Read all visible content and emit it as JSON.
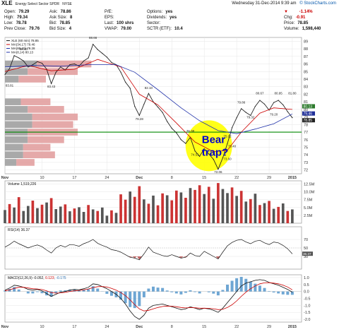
{
  "header": {
    "symbol": "XLE",
    "name": "Energy Select Sector SPDR",
    "exchange": "NYSE",
    "date": "Wednesday  31-Dec-2014  9:39 am",
    "site": "© StockCharts.com",
    "quote": [
      {
        "label": "Open:",
        "value": "79.29"
      },
      {
        "label": "High:",
        "value": "79.34"
      },
      {
        "label": "Low:",
        "value": "78.78"
      },
      {
        "label": "Prev Close:",
        "value": "79.76"
      }
    ],
    "quote2": [
      {
        "label": "Ask:",
        "value": "78.86"
      },
      {
        "label": "Ask Size:",
        "value": "8"
      },
      {
        "label": "Bid:",
        "value": "78.85"
      },
      {
        "label": "Bid Size:",
        "value": "4"
      }
    ],
    "quote3": [
      {
        "label": "P/E:",
        "value": ""
      },
      {
        "label": "EPS:",
        "value": ""
      },
      {
        "label": "Last:",
        "value": "100 shrs"
      },
      {
        "label": "VWAP:",
        "value": "79.00"
      }
    ],
    "quote4": [
      {
        "label": "Options:",
        "value": "yes"
      },
      {
        "label": "Dividends:",
        "value": "yes"
      },
      {
        "label": "Sector:",
        "value": ""
      },
      {
        "label": "SCTR (ETF):",
        "value": "10.4"
      }
    ],
    "change_pct": "-1.14%",
    "change": [
      {
        "label": "Chg:",
        "value": "-0.91"
      },
      {
        "label": "Price:",
        "value": "78.85"
      },
      {
        "label": "Volume:",
        "value": "1,598,440"
      }
    ]
  },
  "price_panel": {
    "legend": [
      "XLE (60 min) 78.85",
      "MA(34,17) 79.46",
      "MA(80,20) 79.28",
      "MA(8,14) 80.13"
    ],
    "annotation": "Bear\ntrap?",
    "annotation_line1": "Bear",
    "annotation_line2": "trap?",
    "price_badges": [
      "80.13",
      "79.46",
      "78.85"
    ],
    "support_level": 77,
    "highlight_color": "#ffff00",
    "annotation_color": "#0000cc"
  },
  "colors": {
    "price": "#222222",
    "ma_fast": "#cc0000",
    "ma_slow": "#2233aa",
    "support": "#008800",
    "up_volume": "#555555",
    "down_volume": "#cc3333",
    "macd_hist": "#4a90c8",
    "vbp_down": "#e09a9a",
    "vbp_up": "#9a9a9a"
  },
  "chart_data": [
    {
      "type": "line",
      "panel": "price",
      "ylim": [
        71.5,
        89.5
      ],
      "yticks": [
        72,
        73,
        74,
        75,
        76,
        77,
        78,
        79,
        80,
        81,
        82,
        83,
        84,
        85,
        86,
        87,
        88,
        89
      ],
      "x_labels": [
        "Nov",
        "10",
        "17",
        "24",
        "Dec",
        "8",
        "15",
        "22",
        "29",
        "2015"
      ],
      "x_label_pos": [
        0,
        8,
        15,
        22,
        29,
        36,
        43,
        50,
        57,
        62
      ],
      "x_range": [
        0,
        64
      ],
      "series": [
        {
          "name": "XLE (60 min)",
          "points": [
            [
              0,
              84.6
            ],
            [
              1,
              85.4
            ],
            [
              2,
              87.1
            ],
            [
              3,
              86.8
            ],
            [
              4,
              86.4
            ],
            [
              5,
              85.6
            ],
            [
              6,
              85.9
            ],
            [
              7,
              86.3
            ],
            [
              8,
              86.1
            ],
            [
              9,
              85.3
            ],
            [
              10,
              83.4
            ],
            [
              11,
              84.9
            ],
            [
              12,
              85.6
            ],
            [
              13,
              85.2
            ],
            [
              14,
              85.9
            ],
            [
              15,
              86.0
            ],
            [
              16,
              85.7
            ],
            [
              17,
              86.4
            ],
            [
              18,
              86.8
            ],
            [
              19,
              88.6
            ],
            [
              20,
              87.9
            ],
            [
              21,
              87.4
            ],
            [
              22,
              86.9
            ],
            [
              23,
              86.2
            ],
            [
              24,
              85.9
            ],
            [
              25,
              84.9
            ],
            [
              26,
              83.6
            ],
            [
              27,
              82.8
            ],
            [
              28,
              80.4
            ],
            [
              29,
              79.2
            ],
            [
              30,
              80.7
            ],
            [
              31,
              82.1
            ],
            [
              32,
              81.0
            ],
            [
              33,
              80.3
            ],
            [
              34,
              79.6
            ],
            [
              35,
              78.4
            ],
            [
              36,
              77.5
            ],
            [
              37,
              76.9
            ],
            [
              38,
              76.0
            ],
            [
              39,
              75.5
            ],
            [
              40,
              76.3
            ],
            [
              41,
              74.5
            ],
            [
              42,
              73.8
            ],
            [
              43,
              74.8
            ],
            [
              44,
              74.1
            ],
            [
              45,
              73.4
            ],
            [
              46,
              72.1
            ],
            [
              47,
              73.6
            ],
            [
              48,
              75.5
            ],
            [
              49,
              77.6
            ],
            [
              50,
              78.9
            ],
            [
              51,
              80.1
            ],
            [
              52,
              79.6
            ],
            [
              53,
              79.2
            ],
            [
              54,
              80.4
            ],
            [
              55,
              81.2
            ],
            [
              56,
              80.7
            ],
            [
              57,
              79.9
            ],
            [
              58,
              80.9
            ],
            [
              59,
              81.2
            ],
            [
              60,
              80.6
            ],
            [
              61,
              79.7
            ],
            [
              62,
              78.9
            ]
          ]
        },
        {
          "name": "MA fast",
          "points": [
            [
              0,
              85.0
            ],
            [
              5,
              85.8
            ],
            [
              10,
              85.1
            ],
            [
              15,
              85.3
            ],
            [
              20,
              86.6
            ],
            [
              25,
              85.6
            ],
            [
              29,
              82.0
            ],
            [
              33,
              80.6
            ],
            [
              37,
              78.2
            ],
            [
              41,
              75.7
            ],
            [
              45,
              74.4
            ],
            [
              48,
              74.6
            ],
            [
              51,
              77.0
            ],
            [
              55,
              79.5
            ],
            [
              58,
              80.2
            ],
            [
              62,
              80.0
            ]
          ]
        },
        {
          "name": "MA slow",
          "points": [
            [
              0,
              85.6
            ],
            [
              6,
              85.8
            ],
            [
              12,
              85.7
            ],
            [
              18,
              85.9
            ],
            [
              24,
              85.9
            ],
            [
              28,
              84.9
            ],
            [
              33,
              82.6
            ],
            [
              38,
              80.2
            ],
            [
              42,
              78.5
            ],
            [
              46,
              77.2
            ],
            [
              50,
              76.8
            ],
            [
              54,
              77.4
            ],
            [
              58,
              78.1
            ],
            [
              62,
              79.4
            ]
          ]
        }
      ],
      "data_labels": [
        {
          "x": 1,
          "y": 83.0,
          "text": "83.81"
        },
        {
          "x": 4,
          "y": 87.8,
          "text": "86.40"
        },
        {
          "x": 10,
          "y": 82.9,
          "text": "83.43"
        },
        {
          "x": 19,
          "y": 89.3,
          "text": "88.66"
        },
        {
          "x": 31,
          "y": 82.7,
          "text": "82.10"
        },
        {
          "x": 29,
          "y": 78.6,
          "text": "79.28"
        },
        {
          "x": 40,
          "y": 77.0,
          "text": "76.38"
        },
        {
          "x": 41,
          "y": 73.9,
          "text": "74.51"
        },
        {
          "x": 48,
          "y": 76.3,
          "text": "75.02"
        },
        {
          "x": 46,
          "y": 71.6,
          "text": "72.06"
        },
        {
          "x": 48,
          "y": 73.3,
          "text": "73.60"
        },
        {
          "x": 49,
          "y": 75.0,
          "text": "75.40"
        },
        {
          "x": 51,
          "y": 80.8,
          "text": "79.86"
        },
        {
          "x": 53,
          "y": 78.8,
          "text": "79.32"
        },
        {
          "x": 55,
          "y": 82.0,
          "text": "80.67"
        },
        {
          "x": 58,
          "y": 79.2,
          "text": "79.20"
        },
        {
          "x": 59,
          "y": 82.0,
          "text": "80.95"
        },
        {
          "x": 62,
          "y": 82.0,
          "text": "81.80"
        }
      ],
      "volume_by_price": [
        {
          "y": 86,
          "down": 0.24,
          "up": 0.14
        },
        {
          "y": 85,
          "down": 0.22,
          "up": 0.1
        },
        {
          "y": 84,
          "down": 0.12,
          "up": 0.06
        },
        {
          "y": 81,
          "down": 0.13,
          "up": 0.07
        },
        {
          "y": 80,
          "down": 0.16,
          "up": 0.1
        },
        {
          "y": 79,
          "down": 0.2,
          "up": 0.12
        },
        {
          "y": 78,
          "down": 0.18,
          "up": 0.12
        },
        {
          "y": 77,
          "down": 0.22,
          "up": 0.1
        },
        {
          "y": 76,
          "down": 0.16,
          "up": 0.1
        },
        {
          "y": 75,
          "down": 0.12,
          "up": 0.08
        },
        {
          "y": 74,
          "down": 0.14,
          "up": 0.08
        },
        {
          "y": 73,
          "down": 0.08,
          "up": 0.05
        }
      ]
    },
    {
      "type": "bar",
      "panel": "volume",
      "legend": "Volume 1,519,226",
      "ylim": [
        0,
        13.5
      ],
      "yticks": [
        "2.5M",
        "5.0M",
        "7.5M",
        "10.0M",
        "12.5M"
      ],
      "ytick_values": [
        2.5,
        5.0,
        7.5,
        10.0,
        12.5
      ],
      "values": [
        4.2,
        6.1,
        5.0,
        8.3,
        3.9,
        5.5,
        7.2,
        4.8,
        5.9,
        6.6,
        8.0,
        4.5,
        5.3,
        6.0,
        3.8,
        4.7,
        5.1,
        3.6,
        5.8,
        4.4,
        3.9,
        5.0,
        2.4,
        4.1,
        3.3,
        9.2,
        7.5,
        10.1,
        8.4,
        11.8,
        7.6,
        6.2,
        8.8,
        5.7,
        9.5,
        8.9,
        7.3,
        10.4,
        9.8,
        8.1,
        11.2,
        10.6,
        12.1,
        9.3,
        11.6,
        7.8,
        12.8,
        10.9,
        9.6,
        11.4,
        8.7,
        10.3,
        6.9,
        7.7,
        9.4,
        5.8,
        6.4,
        7.1,
        4.6,
        5.2,
        6.3,
        3.9,
        4.4
      ],
      "up": [
        1,
        0,
        1,
        0,
        1,
        1,
        0,
        1,
        0,
        1,
        0,
        1,
        1,
        0,
        1,
        0,
        1,
        1,
        0,
        1,
        0,
        1,
        1,
        0,
        1,
        0,
        0,
        1,
        0,
        0,
        1,
        0,
        1,
        0,
        0,
        1,
        0,
        0,
        1,
        0,
        1,
        0,
        0,
        1,
        0,
        1,
        0,
        1,
        1,
        0,
        1,
        0,
        1,
        0,
        1,
        0,
        1,
        0,
        1,
        0,
        1,
        0,
        1
      ]
    },
    {
      "type": "line",
      "panel": "rsi",
      "legend": "RSI(14) 36.37",
      "ylim": [
        0,
        100
      ],
      "yticks": [
        "70",
        "50",
        "30"
      ],
      "ytick_values": [
        70,
        50,
        30
      ],
      "badge": "36.37",
      "series": [
        {
          "name": "RSI(14)",
          "values": [
            52,
            58,
            66,
            60,
            55,
            50,
            54,
            57,
            53,
            45,
            38,
            50,
            56,
            52,
            58,
            57,
            54,
            60,
            64,
            70,
            61,
            56,
            52,
            46,
            44,
            40,
            34,
            28,
            26,
            22,
            36,
            52,
            40,
            36,
            32,
            30,
            34,
            30,
            26,
            28,
            38,
            32,
            30,
            42,
            36,
            30,
            24,
            40,
            55,
            63,
            68,
            70,
            64,
            60,
            66,
            68,
            62,
            58,
            64,
            62,
            56,
            48,
            36
          ]
        }
      ]
    },
    {
      "type": "line",
      "panel": "macd",
      "legend_prefix": "MACD(12,26,9) -0.052, ",
      "legend_signal": "0.123",
      "legend_hist": ", -0.175",
      "ylim": [
        -2.2,
        1.2
      ],
      "yticks": [
        "1.0",
        "0.5",
        "0.0",
        "-0.5",
        "-1.0",
        "-1.5",
        "-2.0"
      ],
      "ytick_values": [
        1.0,
        0.5,
        0.0,
        -0.5,
        -1.0,
        -1.5,
        -2.0
      ],
      "series": [
        {
          "name": "MACD",
          "values": [
            0.1,
            0.25,
            0.45,
            0.4,
            0.3,
            0.15,
            0.1,
            0.15,
            0.05,
            -0.15,
            -0.35,
            -0.2,
            -0.05,
            0.0,
            0.1,
            0.15,
            0.12,
            0.2,
            0.3,
            0.55,
            0.5,
            0.35,
            0.2,
            0.0,
            -0.2,
            -0.5,
            -0.9,
            -1.4,
            -1.8,
            -2.0,
            -1.7,
            -1.2,
            -1.0,
            -0.95,
            -0.9,
            -1.0,
            -1.1,
            -1.2,
            -1.3,
            -1.25,
            -1.1,
            -1.2,
            -1.3,
            -1.2,
            -1.25,
            -1.35,
            -1.5,
            -1.2,
            -0.8,
            -0.4,
            0.0,
            0.4,
            0.6,
            0.7,
            0.8,
            0.85,
            0.8,
            0.65,
            0.55,
            0.45,
            0.3,
            0.15,
            -0.05
          ]
        },
        {
          "name": "Signal",
          "values": [
            0.05,
            0.12,
            0.22,
            0.3,
            0.3,
            0.25,
            0.2,
            0.18,
            0.14,
            0.05,
            -0.08,
            -0.12,
            -0.1,
            -0.06,
            0.0,
            0.05,
            0.08,
            0.12,
            0.18,
            0.28,
            0.35,
            0.36,
            0.32,
            0.22,
            0.1,
            -0.08,
            -0.3,
            -0.6,
            -0.95,
            -1.25,
            -1.4,
            -1.35,
            -1.25,
            -1.15,
            -1.08,
            -1.05,
            -1.06,
            -1.1,
            -1.15,
            -1.18,
            -1.16,
            -1.17,
            -1.2,
            -1.2,
            -1.21,
            -1.24,
            -1.3,
            -1.28,
            -1.15,
            -0.95,
            -0.68,
            -0.35,
            -0.05,
            0.2,
            0.4,
            0.55,
            0.62,
            0.63,
            0.6,
            0.55,
            0.45,
            0.32,
            0.12
          ]
        }
      ]
    }
  ]
}
